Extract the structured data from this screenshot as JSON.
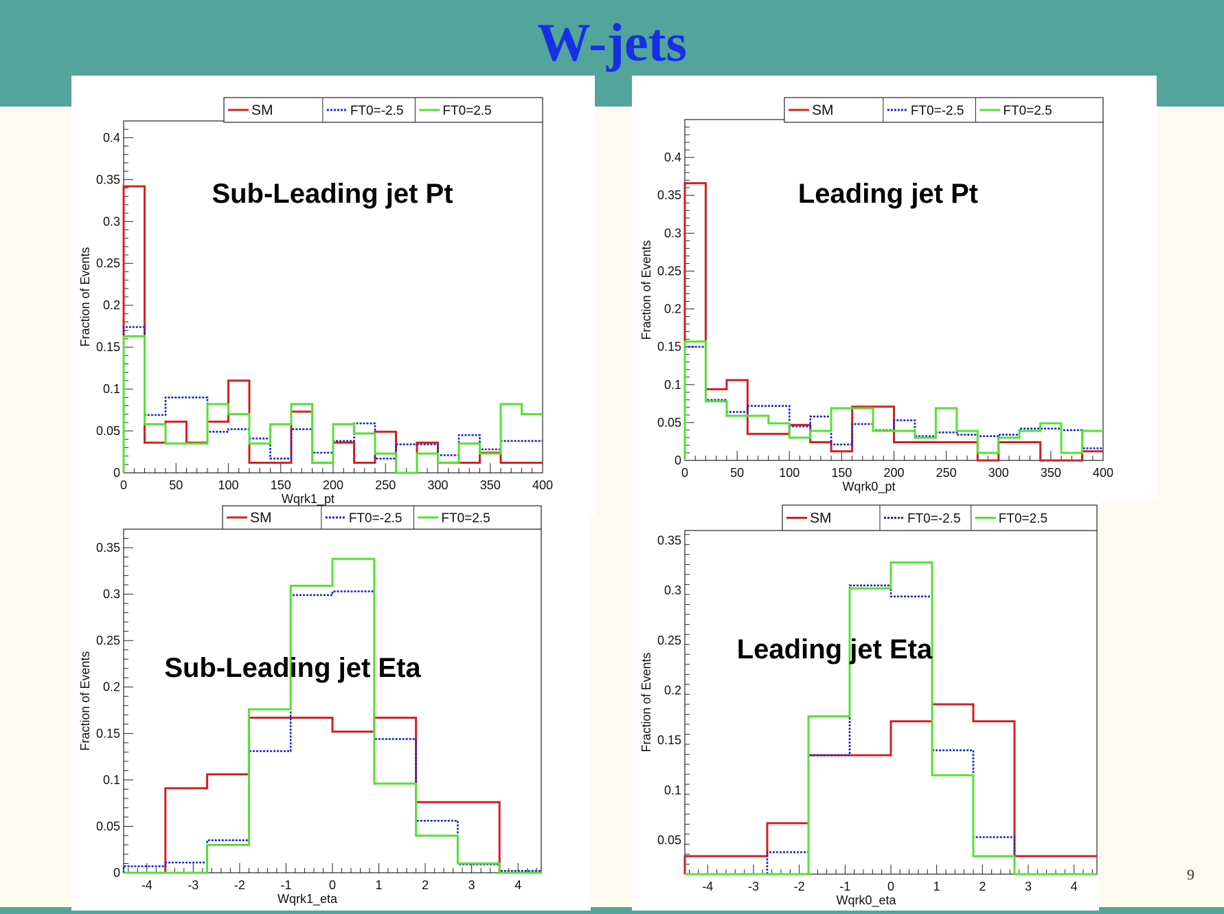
{
  "slide": {
    "title": "W-jets",
    "page_number": "9"
  },
  "colors": {
    "band": "#53a49b",
    "title": "#1530e6",
    "SM": "#d22020",
    "FT0=-2.5": "#1a25c9",
    "FT0=2.5": "#55e033"
  },
  "chart_data": [
    {
      "type": "histogram",
      "annotation": "Sub-Leading jet Pt",
      "xlabel": "Wqrk1_pt",
      "ylabel": "Fraction of Events",
      "xlim": [
        0,
        400
      ],
      "ylim": [
        0,
        0.42
      ],
      "xticks": [
        0,
        50,
        100,
        150,
        200,
        250,
        300,
        350,
        400
      ],
      "yticks": [
        0,
        0.05,
        0.1,
        0.15,
        0.2,
        0.25,
        0.3,
        0.35,
        0.4
      ],
      "legend": "top-right",
      "bin_width": 20,
      "bin_edges_start": 0,
      "series": [
        {
          "name": "SM",
          "values": [
            0.342,
            0.036,
            0.061,
            0.036,
            0.061,
            0.11,
            0.012,
            0.012,
            0.073,
            0.012,
            0.036,
            0.012,
            0.049,
            0.0,
            0.036,
            0.012,
            0.012,
            0.024,
            0.012,
            0.012
          ]
        },
        {
          "name": "FT0=-2.5",
          "values": [
            0.174,
            0.069,
            0.09,
            0.09,
            0.049,
            0.052,
            0.041,
            0.017,
            0.052,
            0.024,
            0.038,
            0.059,
            0.017,
            0.034,
            0.034,
            0.021,
            0.045,
            0.028,
            0.038,
            0.038
          ]
        },
        {
          "name": "FT0=2.5",
          "values": [
            0.163,
            0.058,
            0.035,
            0.035,
            0.082,
            0.07,
            0.035,
            0.058,
            0.082,
            0.012,
            0.058,
            0.047,
            0.023,
            0.0,
            0.023,
            0.012,
            0.035,
            0.023,
            0.082,
            0.07
          ]
        }
      ]
    },
    {
      "type": "histogram",
      "annotation": "Leading jet Pt",
      "xlabel": "Wqrk0_pt",
      "ylabel": "Fraction of Events",
      "xlim": [
        0,
        400
      ],
      "ylim": [
        0,
        0.45
      ],
      "xticks": [
        0,
        50,
        100,
        150,
        200,
        250,
        300,
        350,
        400
      ],
      "yticks": [
        0,
        0.05,
        0.1,
        0.15,
        0.2,
        0.25,
        0.3,
        0.35,
        0.4
      ],
      "legend": "top-right",
      "bin_width": 20,
      "bin_edges_start": 0,
      "series": [
        {
          "name": "SM",
          "values": [
            0.366,
            0.094,
            0.106,
            0.035,
            0.035,
            0.047,
            0.024,
            0.012,
            0.071,
            0.071,
            0.024,
            0.024,
            0.024,
            0.024,
            0.0,
            0.024,
            0.024,
            0.0,
            0.0,
            0.012
          ]
        },
        {
          "name": "FT0=-2.5",
          "values": [
            0.15,
            0.08,
            0.064,
            0.072,
            0.072,
            0.045,
            0.058,
            0.021,
            0.048,
            0.04,
            0.053,
            0.032,
            0.037,
            0.034,
            0.032,
            0.034,
            0.042,
            0.042,
            0.04,
            0.016
          ]
        },
        {
          "name": "FT0=2.5",
          "values": [
            0.157,
            0.078,
            0.059,
            0.059,
            0.049,
            0.03,
            0.039,
            0.069,
            0.069,
            0.039,
            0.039,
            0.03,
            0.069,
            0.039,
            0.01,
            0.03,
            0.039,
            0.049,
            0.01,
            0.039
          ]
        }
      ]
    },
    {
      "type": "histogram",
      "annotation": "Sub-Leading jet Eta",
      "xlabel": "Wqrk1_eta",
      "ylabel": "Fraction of Events",
      "xlim": [
        -4.5,
        4.5
      ],
      "ylim": [
        0,
        0.37
      ],
      "xticks": [
        -4,
        -3,
        -2,
        -1,
        0,
        1,
        2,
        3,
        4
      ],
      "yticks": [
        0,
        0.05,
        0.1,
        0.15,
        0.2,
        0.25,
        0.3,
        0.35
      ],
      "legend": "top-right",
      "bin_width": 0.9,
      "bin_edges_start": -4.5,
      "series": [
        {
          "name": "SM",
          "values": [
            0.0,
            0.091,
            0.106,
            0.167,
            0.167,
            0.152,
            0.167,
            0.076,
            0.076,
            0.0
          ]
        },
        {
          "name": "FT0=-2.5",
          "values": [
            0.007,
            0.011,
            0.035,
            0.131,
            0.299,
            0.303,
            0.144,
            0.056,
            0.009,
            0.002
          ]
        },
        {
          "name": "FT0=2.5",
          "values": [
            0.0,
            0.0,
            0.03,
            0.176,
            0.309,
            0.338,
            0.096,
            0.04,
            0.01,
            0.0
          ]
        }
      ]
    },
    {
      "type": "histogram",
      "annotation": "Leading jet Eta",
      "xlabel": "Wqrk0_eta",
      "ylabel": "Fraction of Events",
      "xlim": [
        -4.5,
        4.5
      ],
      "ylim": [
        0.016,
        0.36
      ],
      "xticks": [
        -4,
        -3,
        -2,
        -1,
        0,
        1,
        2,
        3,
        4
      ],
      "yticks": [
        0.05,
        0.1,
        0.15,
        0.2,
        0.25,
        0.3,
        0.35
      ],
      "legend": "top-right",
      "bin_width": 0.9,
      "bin_edges_start": -4.5,
      "series": [
        {
          "name": "SM",
          "values": [
            0.034,
            0.034,
            0.067,
            0.135,
            0.135,
            0.169,
            0.186,
            0.169,
            0.034,
            0.034
          ]
        },
        {
          "name": "FT0=-2.5",
          "values": [
            0.016,
            0.016,
            0.038,
            0.135,
            0.305,
            0.294,
            0.14,
            0.053,
            0.016,
            0.016
          ]
        },
        {
          "name": "FT0=2.5",
          "values": [
            0.016,
            0.016,
            0.016,
            0.174,
            0.302,
            0.328,
            0.115,
            0.034,
            0.016,
            0.016
          ]
        }
      ]
    }
  ]
}
